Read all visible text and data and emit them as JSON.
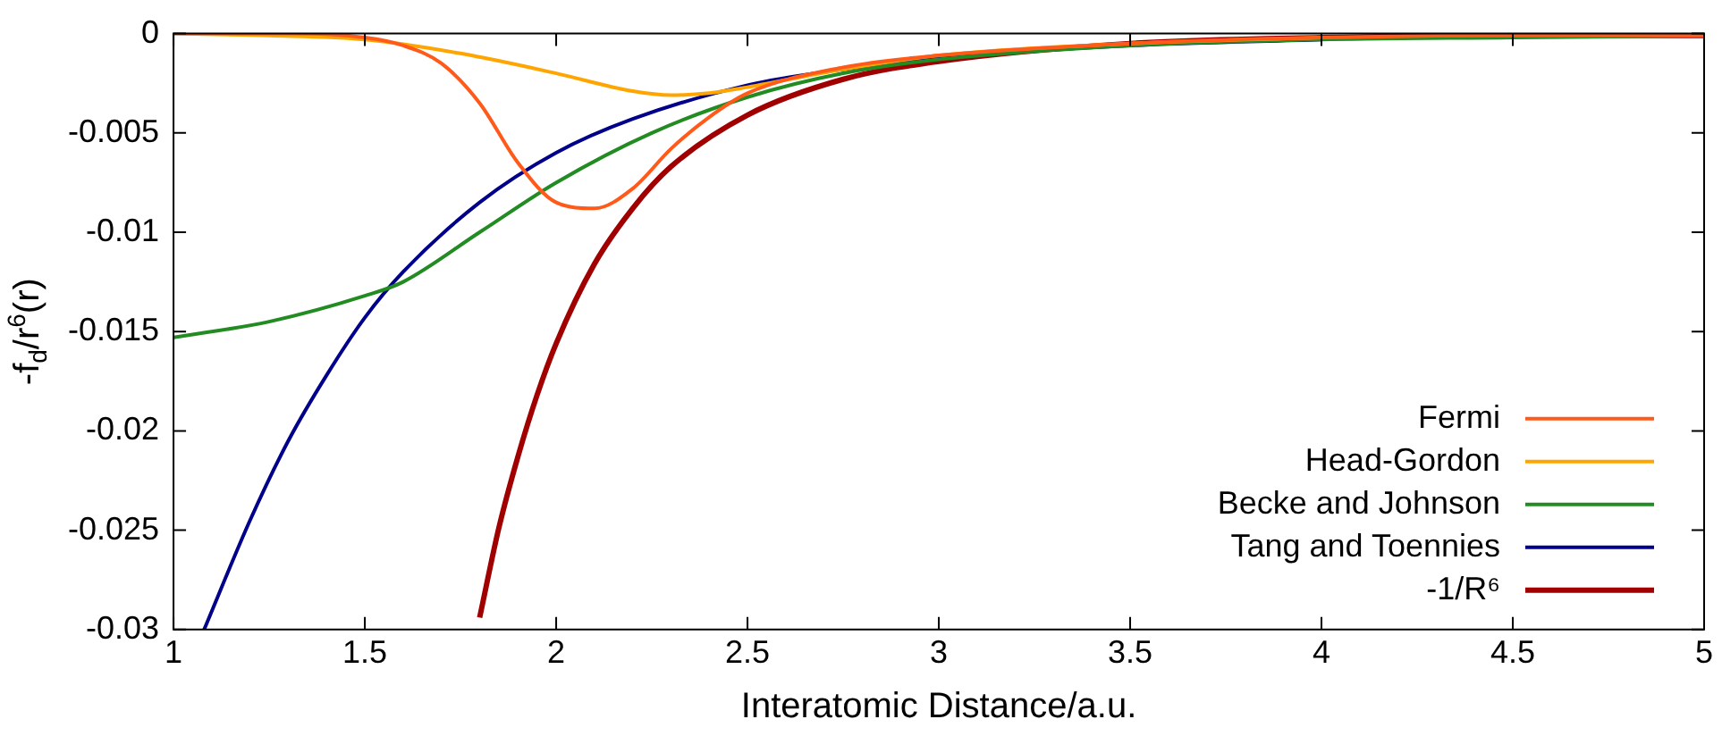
{
  "chart_data": {
    "type": "line",
    "xlabel": "Interatomic Distance/a.u.",
    "ylabel": "-f$_{d}$/r$^{6}$(r)",
    "xlim": [
      1,
      5
    ],
    "xticks": [
      1,
      1.5,
      2,
      2.5,
      3,
      3.5,
      4,
      4.5,
      5
    ],
    "ylim": [
      -0.03,
      0
    ],
    "yticks": [
      -0.03,
      -0.025,
      -0.02,
      -0.015,
      -0.01,
      -0.005,
      0
    ],
    "grid": false,
    "legend": "bottom right",
    "marker": "none",
    "line_style": "solid",
    "series": [
      {
        "name": "Fermi",
        "color": "#ff5a1a",
        "x": [
          1,
          1.3,
          1.5,
          1.6,
          1.7,
          1.8,
          1.9,
          2.0,
          2.1,
          2.2,
          2.3,
          2.4,
          2.5,
          2.75,
          3,
          3.5,
          4,
          4.5,
          5
        ],
        "values": [
          0,
          0,
          -0.0002,
          -0.0006,
          -0.0015,
          -0.0035,
          -0.0065,
          -0.0085,
          -0.0088,
          -0.0078,
          -0.0058,
          -0.0042,
          -0.003,
          -0.0017,
          -0.0011,
          -0.0005,
          -0.0002,
          -0.0001,
          -0.0001
        ]
      },
      {
        "name": "Head-Gordon",
        "color": "#ffa500",
        "x": [
          1,
          1.25,
          1.5,
          1.75,
          2,
          2.2,
          2.3,
          2.4,
          2.5,
          2.75,
          3,
          3.5,
          4
        ],
        "values": [
          0,
          -0.0001,
          -0.0003,
          -0.001,
          -0.002,
          -0.0029,
          -0.0031,
          -0.003,
          -0.0027,
          -0.0018,
          -0.0011,
          -0.0005,
          -0.0002
        ]
      },
      {
        "name": "Becke and Johnson",
        "color": "#228b22",
        "x": [
          1,
          1.25,
          1.5,
          1.6,
          1.8,
          2,
          2.25,
          2.5,
          2.75,
          3,
          3.5,
          4,
          4.5,
          5
        ],
        "values": [
          -0.0153,
          -0.0145,
          -0.0132,
          -0.0125,
          -0.01,
          -0.0075,
          -0.005,
          -0.0032,
          -0.002,
          -0.0013,
          -0.0006,
          -0.0003,
          -0.0002,
          -0.0001
        ]
      },
      {
        "name": "Tang and Toennies",
        "color": "#00008b",
        "x": [
          1.08,
          1.2,
          1.3,
          1.4,
          1.5,
          1.6,
          1.8,
          2,
          2.2,
          2.5,
          2.75,
          3,
          3.5,
          4
        ],
        "values": [
          -0.03,
          -0.0245,
          -0.0205,
          -0.0172,
          -0.0143,
          -0.012,
          -0.0085,
          -0.006,
          -0.0043,
          -0.0026,
          -0.0018,
          -0.0012,
          -0.0006,
          -0.0003
        ]
      },
      {
        "name": "-1/R⁶",
        "color": "#a00000",
        "x": [
          1.8,
          1.85,
          1.9,
          1.95,
          2,
          2.1,
          2.2,
          2.3,
          2.5,
          2.75,
          3,
          3.5,
          4,
          4.5,
          5
        ],
        "values": [
          -0.0294,
          -0.0249,
          -0.0213,
          -0.0182,
          -0.0156,
          -0.0116,
          -0.0088,
          -0.0067,
          -0.0041,
          -0.0023,
          -0.0014,
          -0.0005,
          -0.0002,
          -0.0001,
          -0.0001
        ]
      }
    ]
  }
}
